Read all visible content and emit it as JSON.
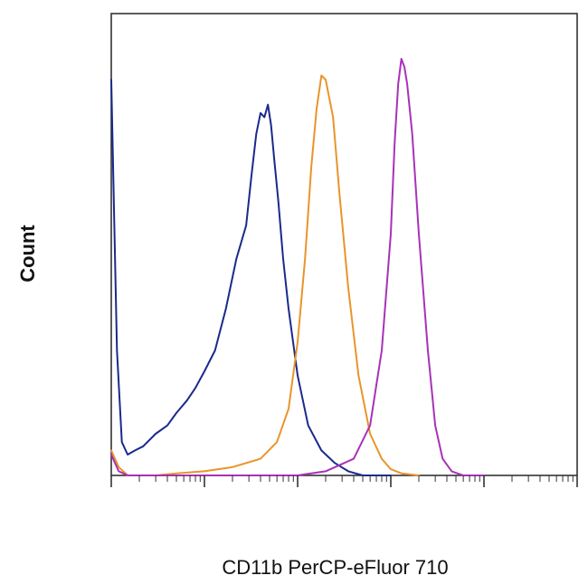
{
  "chart_data": {
    "type": "line",
    "title": "",
    "xlabel": "CD11b PerCP-eFluor 710",
    "ylabel": "Count",
    "x_scale": "log",
    "xlim": [
      1,
      100000
    ],
    "ylim": [
      0,
      100
    ],
    "grid": false,
    "legend": "none",
    "show_tick_labels": false,
    "series": [
      {
        "color": "#1a2a8c",
        "x": [
          1,
          1.15,
          1.3,
          1.5,
          1.8,
          2.2,
          3,
          4,
          5,
          6.5,
          8,
          10,
          13,
          17,
          22,
          28,
          32,
          36,
          40,
          44,
          48,
          52,
          56,
          62,
          70,
          80,
          100,
          130,
          180,
          250,
          350,
          500,
          700,
          1000
        ],
        "values": [
          95,
          30,
          8,
          5,
          6,
          7,
          10,
          12,
          15,
          18,
          21,
          25,
          30,
          40,
          52,
          60,
          72,
          82,
          87,
          86,
          89,
          84,
          76,
          66,
          52,
          40,
          24,
          12,
          6,
          3,
          1,
          0,
          0,
          0
        ]
      },
      {
        "color": "#e8952c",
        "x": [
          1,
          1.2,
          1.5,
          2,
          3,
          5,
          10,
          20,
          40,
          60,
          80,
          100,
          120,
          140,
          160,
          180,
          200,
          240,
          280,
          350,
          450,
          600,
          800,
          1000,
          1300,
          2000
        ],
        "values": [
          6,
          2,
          0,
          0,
          0,
          0.5,
          1,
          2,
          4,
          8,
          16,
          32,
          52,
          74,
          88,
          96,
          95,
          86,
          68,
          45,
          24,
          10,
          4,
          1.5,
          0.5,
          0
        ]
      },
      {
        "color": "#a832b8",
        "x": [
          1,
          1.2,
          1.5,
          2,
          10,
          100,
          200,
          400,
          600,
          800,
          1000,
          1100,
          1200,
          1300,
          1400,
          1500,
          1700,
          2000,
          2500,
          3000,
          3600,
          4500,
          6000,
          10000
        ],
        "values": [
          5,
          1,
          0,
          0,
          0,
          0,
          1,
          4,
          12,
          30,
          58,
          80,
          94,
          100,
          98,
          94,
          82,
          58,
          30,
          12,
          4,
          1,
          0,
          0
        ]
      }
    ]
  }
}
